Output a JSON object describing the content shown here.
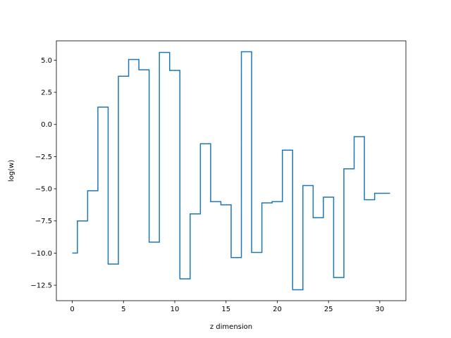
{
  "chart_data": {
    "type": "line",
    "drawstyle": "steps-mid",
    "title": "",
    "xlabel": "z dimension",
    "ylabel": "log(w)",
    "xlim": [
      -1.55,
      32.55
    ],
    "ylim": [
      -13.7,
      6.5
    ],
    "xticks": [
      0,
      5,
      10,
      15,
      20,
      25,
      30
    ],
    "yticks": [
      5.0,
      2.5,
      0.0,
      -2.5,
      -5.0,
      -7.5,
      -10.0,
      -12.5
    ],
    "ytick_labels": [
      "5.0",
      "2.5",
      "0.0",
      "−2.5",
      "−5.0",
      "−7.5",
      "−10.0",
      "−12.5"
    ],
    "grid": false,
    "legend": "none",
    "series": [
      {
        "color": "#1f77b4",
        "x": [
          0,
          1,
          2,
          3,
          4,
          5,
          6,
          7,
          8,
          9,
          10,
          11,
          12,
          13,
          14,
          15,
          16,
          17,
          18,
          19,
          20,
          21,
          22,
          23,
          24,
          25,
          26,
          27,
          28,
          29,
          30,
          31
        ],
        "y": [
          -10.0,
          -7.5,
          -5.15,
          1.35,
          -10.85,
          3.75,
          5.05,
          4.25,
          -9.15,
          5.6,
          4.2,
          -12.0,
          -6.95,
          -1.5,
          -6.0,
          -6.25,
          -10.35,
          5.65,
          -9.95,
          -6.1,
          -6.0,
          -2.0,
          -12.85,
          -4.75,
          -7.25,
          -5.65,
          -11.9,
          -3.45,
          -0.95,
          -5.85,
          -5.35,
          -5.35
        ]
      }
    ]
  }
}
